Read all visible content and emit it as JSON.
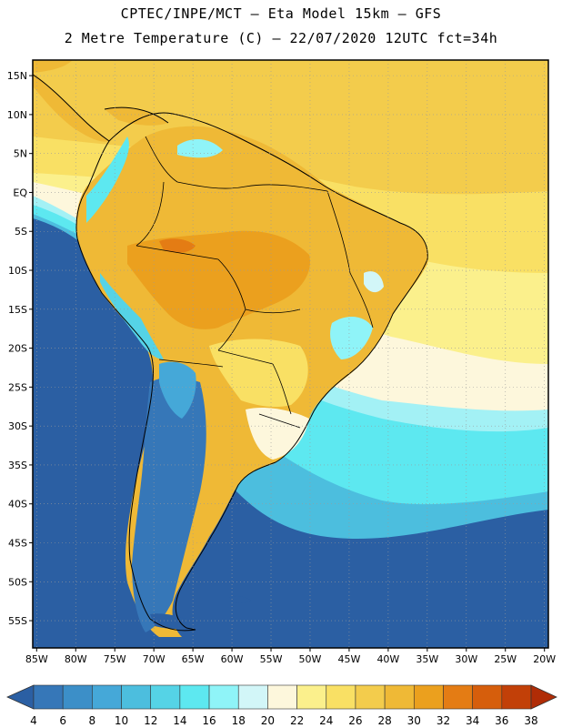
{
  "header": {
    "line1": "CPTEC/INPE/MCT –  Eta Model 15km – GFS",
    "line2": "2 Metre Temperature (C) – 22/07/2020 12UTC fct=34h"
  },
  "map": {
    "lat_labels": [
      "15N",
      "10N",
      "5N",
      "EQ",
      "5S",
      "10S",
      "15S",
      "20S",
      "25S",
      "30S",
      "35S",
      "40S",
      "45S",
      "50S",
      "55S"
    ],
    "lat_values": [
      15,
      10,
      5,
      0,
      -5,
      -10,
      -15,
      -20,
      -25,
      -30,
      -35,
      -40,
      -45,
      -50,
      -55
    ],
    "lon_labels": [
      "85W",
      "80W",
      "75W",
      "70W",
      "65W",
      "60W",
      "55W",
      "50W",
      "45W",
      "40W",
      "35W",
      "30W",
      "25W",
      "20W"
    ],
    "lon_values": [
      -85,
      -80,
      -75,
      -70,
      -65,
      -60,
      -55,
      -50,
      -45,
      -40,
      -35,
      -30,
      -25,
      -20
    ],
    "extent": {
      "lon_min": -85.5,
      "lon_max": -19.5,
      "lat_min": -58.5,
      "lat_max": 17.0
    }
  },
  "colorbar": {
    "labels": [
      "4",
      "6",
      "8",
      "10",
      "12",
      "14",
      "16",
      "18",
      "20",
      "22",
      "24",
      "26",
      "28",
      "30",
      "32",
      "34",
      "36",
      "38"
    ],
    "colors": [
      "#2b5fa3",
      "#3677b8",
      "#3c8fc8",
      "#45a8d8",
      "#4cbede",
      "#55d3e6",
      "#5de8f0",
      "#8ff4f8",
      "#d2f6f8",
      "#fdf7dc",
      "#fbf08c",
      "#f9e064",
      "#f3cc4c",
      "#efb936",
      "#eba01e",
      "#e47c14",
      "#d65e0c",
      "#c24008",
      "#b02c06"
    ]
  }
}
